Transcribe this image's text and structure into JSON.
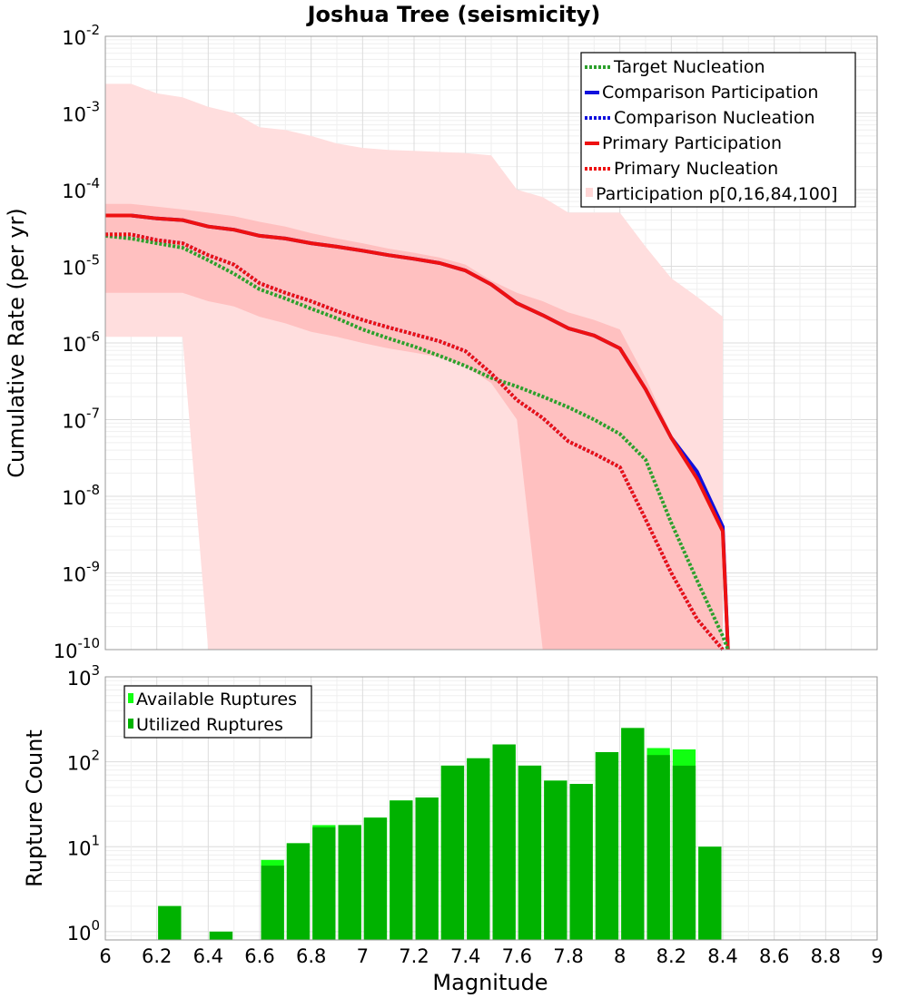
{
  "chart_data": [
    {
      "type": "line",
      "title": "Joshua Tree (seismicity)",
      "xlabel": "Magnitude",
      "ylabel": "Cumulative Rate (per yr)",
      "yscale": "log",
      "xlim": [
        6,
        9
      ],
      "ylim": [
        1e-10,
        0.01
      ],
      "ytick_exponents": [
        "-10",
        "-9",
        "-8",
        "-7",
        "-6",
        "-5",
        "-4",
        "-3",
        "-2"
      ],
      "grid": true,
      "legend_position": "top-right",
      "legend": [
        "Target Nucleation",
        "Comparison Participation",
        "Comparison Nucleation",
        "Primary Participation",
        "Primary Nucleation",
        "Participation p[0,16,84,100]"
      ],
      "colors": {
        "target": "#2ca02c",
        "comparison": "#1010dd",
        "primary": "#ee1111",
        "band_outer": "#ffdede",
        "band_inner": "#ffc0c0"
      },
      "series": [
        {
          "name": "Target Nucleation",
          "style": "dotted",
          "color": "#2ca02c",
          "x": [
            6.0,
            6.1,
            6.2,
            6.3,
            6.4,
            6.5,
            6.6,
            6.7,
            6.8,
            6.9,
            7.0,
            7.1,
            7.2,
            7.3,
            7.4,
            7.5,
            7.6,
            7.7,
            7.8,
            7.9,
            8.0,
            8.1,
            8.2,
            8.3,
            8.4,
            8.42
          ],
          "y": [
            2.5e-05,
            2.3e-05,
            2e-05,
            1.75e-05,
            1.2e-05,
            8e-06,
            5e-06,
            3.8e-06,
            2.8e-06,
            2.1e-06,
            1.5e-06,
            1.15e-06,
            9e-07,
            6.8e-07,
            5e-07,
            3.5e-07,
            2.7e-07,
            2e-07,
            1.45e-07,
            1e-07,
            6.5e-08,
            3e-08,
            4.5e-09,
            8e-10,
            1.5e-10,
            6e-11
          ]
        },
        {
          "name": "Comparison Participation",
          "style": "solid",
          "color": "#1010dd",
          "x": [
            6.0,
            6.1,
            6.2,
            6.3,
            6.4,
            6.5,
            6.6,
            6.7,
            6.8,
            6.9,
            7.0,
            7.1,
            7.2,
            7.3,
            7.4,
            7.5,
            7.6,
            7.7,
            7.8,
            7.9,
            8.0,
            8.1,
            8.2,
            8.3,
            8.4,
            8.42
          ],
          "y": [
            4.6e-05,
            4.6e-05,
            4.2e-05,
            4e-05,
            3.3e-05,
            3e-05,
            2.5e-05,
            2.3e-05,
            2e-05,
            1.8e-05,
            1.6e-05,
            1.4e-05,
            1.25e-05,
            1.1e-05,
            8.8e-06,
            5.8e-06,
            3.3e-06,
            2.3e-06,
            1.55e-06,
            1.25e-06,
            8.5e-07,
            2.5e-07,
            5.8e-08,
            2.1e-08,
            4e-09,
            6e-11
          ]
        },
        {
          "name": "Comparison Nucleation",
          "style": "dotted",
          "color": "#1010dd",
          "x": [
            6.0,
            6.1,
            6.2,
            6.3,
            6.4,
            6.5,
            6.6,
            6.7,
            6.8,
            6.9,
            7.0,
            7.1,
            7.2,
            7.3,
            7.4,
            7.5,
            7.6,
            7.7,
            7.8,
            7.9,
            8.0,
            8.1,
            8.2,
            8.3,
            8.4
          ],
          "y": [
            2.6e-05,
            2.6e-05,
            2.2e-05,
            2e-05,
            1.4e-05,
            1.05e-05,
            6e-06,
            4.5e-06,
            3.5e-06,
            2.6e-06,
            2e-06,
            1.6e-06,
            1.3e-06,
            1.05e-06,
            7.8e-07,
            4e-07,
            1.8e-07,
            1.05e-07,
            5.2e-08,
            3.6e-08,
            2.4e-08,
            5e-09,
            1e-09,
            2.5e-10,
            6e-11
          ]
        },
        {
          "name": "Primary Participation",
          "style": "solid",
          "color": "#ee1111",
          "x": [
            6.0,
            6.1,
            6.2,
            6.3,
            6.4,
            6.5,
            6.6,
            6.7,
            6.8,
            6.9,
            7.0,
            7.1,
            7.2,
            7.3,
            7.4,
            7.5,
            7.6,
            7.7,
            7.8,
            7.9,
            8.0,
            8.1,
            8.2,
            8.3,
            8.4,
            8.42
          ],
          "y": [
            4.6e-05,
            4.6e-05,
            4.2e-05,
            4e-05,
            3.3e-05,
            3e-05,
            2.5e-05,
            2.3e-05,
            2e-05,
            1.8e-05,
            1.6e-05,
            1.4e-05,
            1.25e-05,
            1.1e-05,
            8.8e-06,
            5.8e-06,
            3.3e-06,
            2.3e-06,
            1.55e-06,
            1.25e-06,
            8.5e-07,
            2.5e-07,
            5.8e-08,
            1.7e-08,
            3.5e-09,
            6e-11
          ]
        },
        {
          "name": "Primary Nucleation",
          "style": "dotted",
          "color": "#ee1111",
          "x": [
            6.0,
            6.1,
            6.2,
            6.3,
            6.4,
            6.5,
            6.6,
            6.7,
            6.8,
            6.9,
            7.0,
            7.1,
            7.2,
            7.3,
            7.4,
            7.5,
            7.6,
            7.7,
            7.8,
            7.9,
            8.0,
            8.1,
            8.2,
            8.3,
            8.4
          ],
          "y": [
            2.6e-05,
            2.6e-05,
            2.2e-05,
            2e-05,
            1.4e-05,
            1.05e-05,
            6e-06,
            4.5e-06,
            3.5e-06,
            2.6e-06,
            2e-06,
            1.6e-06,
            1.3e-06,
            1.05e-06,
            7.8e-07,
            4e-07,
            1.8e-07,
            1.05e-07,
            5.2e-08,
            3.6e-08,
            2.4e-08,
            5e-09,
            1e-09,
            2.5e-10,
            6e-11
          ]
        }
      ],
      "bands": [
        {
          "name": "Participation p[0,100]",
          "color": "#ffdede",
          "x": [
            6.0,
            6.1,
            6.2,
            6.3,
            6.4,
            6.5,
            6.6,
            6.7,
            6.8,
            6.9,
            7.0,
            7.1,
            7.2,
            7.3,
            7.4,
            7.5,
            7.6,
            7.7,
            7.8,
            7.9,
            8.0,
            8.1,
            8.2,
            8.3,
            8.4
          ],
          "upper": [
            0.0024,
            0.0024,
            0.0018,
            0.0016,
            0.0012,
            0.001,
            0.00065,
            0.0006,
            0.0005,
            0.0004,
            0.00035,
            0.00033,
            0.00032,
            0.00031,
            0.0003,
            0.00028,
            0.0001,
            8e-05,
            5e-05,
            5e-05,
            5e-05,
            1.8e-05,
            7e-06,
            4e-06,
            2.2e-06
          ],
          "lower": [
            1.2e-06,
            1.2e-06,
            1.2e-06,
            1.2e-06,
            1e-10,
            1e-10,
            1e-10,
            1e-10,
            1e-10,
            1e-10,
            1e-10,
            1e-10,
            1e-10,
            1e-10,
            1e-10,
            1e-10,
            1e-10,
            1e-10,
            1e-10,
            1e-10,
            1e-10,
            1e-10,
            1e-10,
            1e-10,
            1e-10
          ]
        },
        {
          "name": "Participation p[16,84]",
          "color": "#ffc0c0",
          "x": [
            6.0,
            6.1,
            6.2,
            6.3,
            6.4,
            6.5,
            6.6,
            6.7,
            6.8,
            6.9,
            7.0,
            7.1,
            7.2,
            7.3,
            7.4,
            7.5,
            7.6,
            7.7,
            7.8,
            7.9,
            8.0,
            8.1,
            8.2,
            8.3,
            8.4
          ],
          "upper": [
            6.5e-05,
            6.5e-05,
            6e-05,
            5.5e-05,
            5e-05,
            4.5e-05,
            3.8e-05,
            3.3e-05,
            2.7e-05,
            2.3e-05,
            2e-05,
            1.7e-05,
            1.5e-05,
            1.3e-05,
            1.05e-05,
            6.5e-06,
            4.5e-06,
            3.5e-06,
            2.5e-06,
            2e-06,
            1.5e-06,
            3.5e-07,
            6.5e-08,
            2e-08,
            4e-09
          ],
          "lower": [
            4.5e-06,
            4.5e-06,
            4.5e-06,
            4.5e-06,
            3.5e-06,
            3e-06,
            2.2e-06,
            1.8e-06,
            1.4e-06,
            1.2e-06,
            1e-06,
            8.5e-07,
            7.5e-07,
            6.5e-07,
            5e-07,
            3e-07,
            1e-07,
            1e-10,
            1e-10,
            1e-10,
            1e-10,
            1e-10,
            1e-10,
            1e-10,
            1e-10
          ]
        }
      ]
    },
    {
      "type": "bar",
      "xlabel": "Magnitude",
      "ylabel": "Rupture Count",
      "yscale": "log",
      "xlim": [
        6,
        9
      ],
      "ylim": [
        0.8,
        1000
      ],
      "ytick_exponents": [
        "0",
        "1",
        "2",
        "3"
      ],
      "xticks": [
        "6",
        "6.2",
        "6.4",
        "6.6",
        "6.8",
        "7",
        "7.2",
        "7.4",
        "7.6",
        "7.8",
        "8",
        "8.2",
        "8.4",
        "8.6",
        "8.8",
        "9"
      ],
      "grid": true,
      "legend_position": "top-left",
      "legend": [
        "Available Ruptures",
        "Utilized Ruptures"
      ],
      "colors": {
        "available": "#11ff11",
        "utilized": "#00b200"
      },
      "bin_width": 0.1,
      "x": [
        6.25,
        6.45,
        6.65,
        6.75,
        6.85,
        6.95,
        7.05,
        7.15,
        7.25,
        7.35,
        7.45,
        7.55,
        7.65,
        7.75,
        7.85,
        7.95,
        8.05,
        8.15,
        8.25,
        8.35
      ],
      "series": [
        {
          "name": "Available Ruptures",
          "values": [
            2,
            1,
            7,
            11,
            18,
            18,
            22,
            35,
            38,
            90,
            110,
            160,
            90,
            60,
            55,
            130,
            250,
            145,
            140,
            10
          ]
        },
        {
          "name": "Utilized Ruptures",
          "values": [
            2,
            1,
            6,
            11,
            17,
            18,
            22,
            35,
            38,
            90,
            110,
            160,
            90,
            60,
            55,
            130,
            250,
            120,
            90,
            10
          ]
        }
      ]
    }
  ]
}
